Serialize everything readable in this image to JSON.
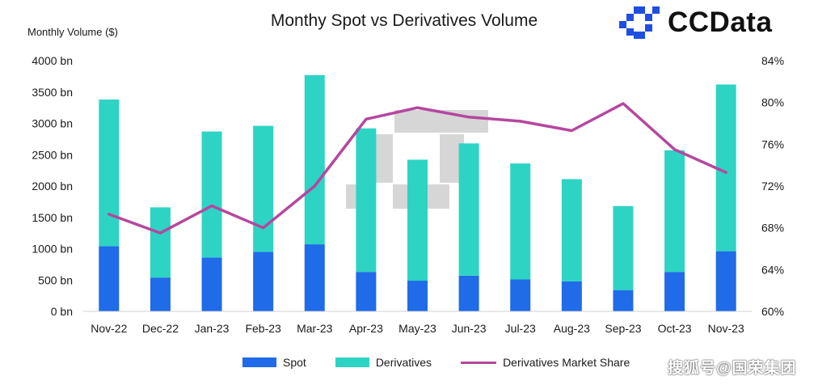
{
  "title": "Monthy Spot vs Derivatives Volume",
  "logo": {
    "text": "CCData",
    "icon": "ccdata-pixel-logo-icon",
    "color": "#1f4fe0"
  },
  "watermark_text": "搜狐号@国荣集团",
  "chart_data": {
    "type": "bar",
    "stacked": true,
    "categories": [
      "Nov-22",
      "Dec-22",
      "Jan-23",
      "Feb-23",
      "Mar-23",
      "Apr-23",
      "May-23",
      "Jun-23",
      "Jul-23",
      "Aug-23",
      "Sep-23",
      "Oct-23",
      "Nov-23"
    ],
    "series": [
      {
        "name": "Spot",
        "type": "bar",
        "color": "#1f6be8",
        "values": [
          1040,
          540,
          860,
          950,
          1070,
          630,
          490,
          570,
          510,
          480,
          340,
          630,
          960
        ]
      },
      {
        "name": "Derivatives",
        "type": "bar",
        "color": "#2dd4c4",
        "values": [
          2340,
          1120,
          2010,
          2010,
          2700,
          2290,
          1930,
          2110,
          1850,
          1630,
          1340,
          1940,
          2660
        ]
      },
      {
        "name": "Derivatives Market Share",
        "type": "line",
        "axis": "right",
        "color": "#b5479f",
        "values": [
          69.3,
          67.5,
          70.1,
          68.0,
          72.0,
          78.4,
          79.5,
          78.6,
          78.2,
          77.3,
          79.9,
          75.5,
          73.3
        ]
      }
    ],
    "ylabel": "Monthly Volume ($)",
    "ylim": [
      0,
      4000
    ],
    "yticks": [
      "0 bn",
      "500 bn",
      "1000 bn",
      "1500 bn",
      "2000 bn",
      "2500 bn",
      "3000 bn",
      "3500 bn",
      "4000 bn"
    ],
    "y2lim": [
      60,
      84
    ],
    "y2ticks": [
      "60%",
      "64%",
      "68%",
      "72%",
      "76%",
      "80%",
      "84%"
    ],
    "grid": false,
    "legend_position": "bottom"
  }
}
